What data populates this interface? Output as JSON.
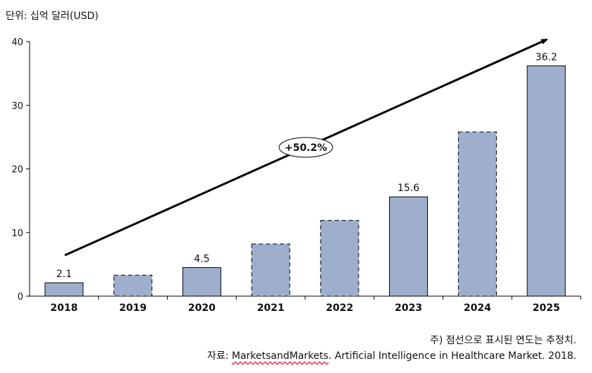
{
  "unit": "단위: 십억 달러(USD)",
  "notes": {
    "note1": "주) 점선으로 표시된 연도는 추정치.",
    "source_prefix": "자료: ",
    "source_name": "MarketsandMarkets",
    "source_rest": ". Artificial Intelligence in Healthcare Market. 2018."
  },
  "chart_data": {
    "type": "bar",
    "categories": [
      "2018",
      "2019",
      "2020",
      "2021",
      "2022",
      "2023",
      "2024",
      "2025"
    ],
    "values": [
      2.1,
      3.3,
      4.5,
      8.2,
      11.9,
      15.6,
      25.8,
      36.2
    ],
    "estimated": [
      false,
      true,
      false,
      true,
      true,
      false,
      true,
      false
    ],
    "data_labels": [
      "2.1",
      "",
      "4.5",
      "",
      "",
      "15.6",
      "",
      "36.2"
    ],
    "yticks": [
      "0",
      "10",
      "20",
      "30",
      "40"
    ],
    "ylim": [
      0,
      40
    ],
    "growth_label": "+50.2%",
    "bar_color": "#9dafcc",
    "grid": false
  }
}
